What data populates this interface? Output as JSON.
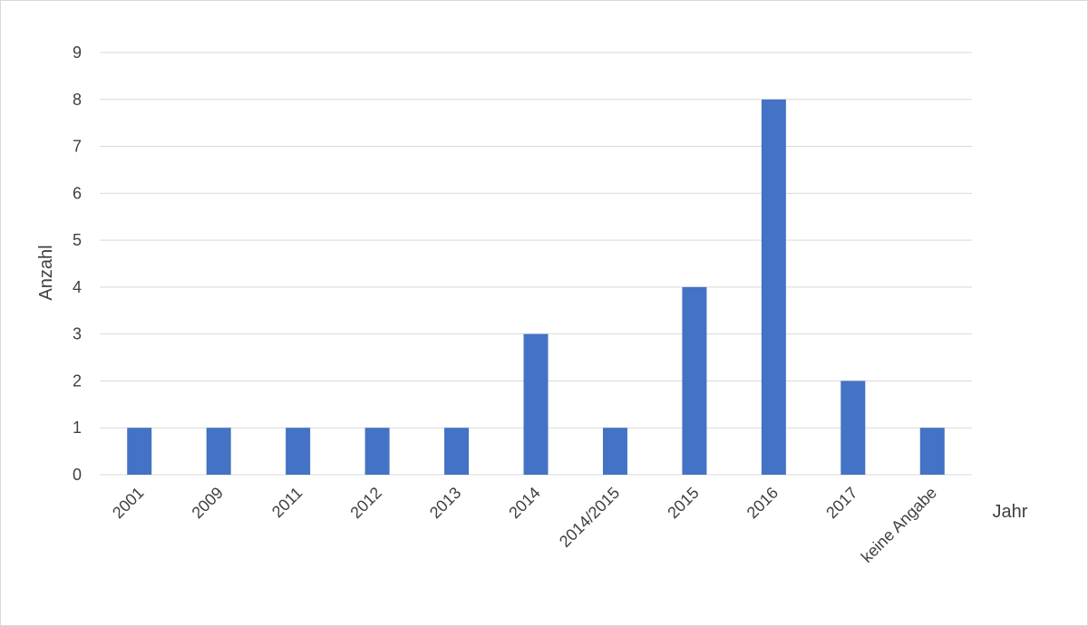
{
  "chart_data": {
    "type": "bar",
    "categories": [
      "2001",
      "2009",
      "2011",
      "2012",
      "2013",
      "2014",
      "2014/2015",
      "2015",
      "2016",
      "2017",
      "keine Angabe"
    ],
    "values": [
      1,
      1,
      1,
      1,
      1,
      3,
      1,
      4,
      8,
      2,
      1
    ],
    "xlabel": "Jahr",
    "ylabel": "Anzahl",
    "ylim": [
      0,
      9
    ],
    "yticks": [
      "0",
      "1",
      "2",
      "3",
      "4",
      "5",
      "6",
      "7",
      "8",
      "9"
    ],
    "grid": true,
    "legend": "none",
    "bar_color": "#4472c4"
  }
}
